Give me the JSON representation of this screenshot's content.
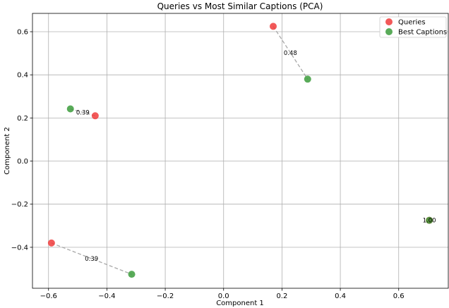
{
  "chart_data": {
    "type": "scatter",
    "title": "Queries vs Most Similar Captions (PCA)",
    "xlabel": "Component 1",
    "ylabel": "Component 2",
    "xlim": [
      -0.655,
      0.77
    ],
    "ylim": [
      -0.59,
      0.685
    ],
    "xticks": [
      -0.6,
      -0.4,
      -0.2,
      0.0,
      0.2,
      0.4,
      0.6
    ],
    "xtick_labels": [
      "−0.6",
      "−0.4",
      "−0.2",
      "0.0",
      "0.2",
      "0.4",
      "0.6"
    ],
    "yticks": [
      -0.4,
      -0.2,
      0.0,
      0.2,
      0.4,
      0.6
    ],
    "ytick_labels": [
      "−0.4",
      "−0.2",
      "0.0",
      "0.2",
      "0.4",
      "0.6"
    ],
    "grid": true,
    "legend_position": "top-right",
    "series": [
      {
        "name": "Queries",
        "color": "#f03c3c",
        "points": [
          {
            "x": 0.17,
            "y": 0.625
          },
          {
            "x": -0.44,
            "y": 0.21
          },
          {
            "x": -0.59,
            "y": -0.38
          },
          {
            "x": 0.705,
            "y": -0.275
          }
        ]
      },
      {
        "name": "Best Captions",
        "color": "#3c9c3c",
        "points": [
          {
            "x": 0.288,
            "y": 0.38
          },
          {
            "x": -0.525,
            "y": 0.242
          },
          {
            "x": -0.315,
            "y": -0.525
          },
          {
            "x": 0.705,
            "y": -0.275
          }
        ]
      }
    ],
    "connections": [
      {
        "from": [
          0.17,
          0.625
        ],
        "to": [
          0.288,
          0.38
        ],
        "label": "0.48"
      },
      {
        "from": [
          -0.44,
          0.21
        ],
        "to": [
          -0.525,
          0.242
        ],
        "label": "0.39"
      },
      {
        "from": [
          -0.59,
          -0.38
        ],
        "to": [
          -0.315,
          -0.525
        ],
        "label": "0.39"
      },
      {
        "from": [
          0.705,
          -0.275
        ],
        "to": [
          0.705,
          -0.275
        ],
        "label": "1.00"
      }
    ]
  }
}
